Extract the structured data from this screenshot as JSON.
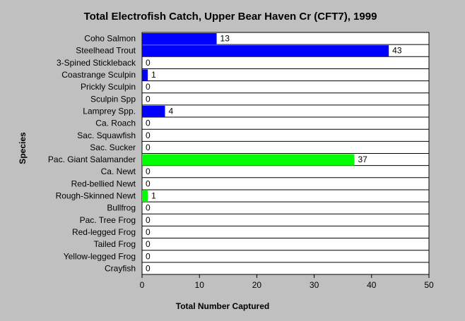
{
  "chart_data": {
    "type": "bar",
    "orientation": "horizontal",
    "title": "Total Electrofish Catch, Upper Bear Haven Cr (CFT7), 1999",
    "xlabel": "Total Number Captured",
    "ylabel": "Species",
    "xlim": [
      0,
      50
    ],
    "xticks": [
      0,
      10,
      20,
      30,
      40,
      50
    ],
    "grid": "horizontal lines between categories",
    "categories": [
      "Coho Salmon",
      "Steelhead Trout",
      "3-Spined Stickleback",
      "Coastrange Sculpin",
      "Prickly Sculpin",
      "Sculpin Spp",
      "Lamprey Spp.",
      "Ca. Roach",
      "Sac. Squawfish",
      "Sac. Sucker",
      "Pac. Giant Salamander",
      "Ca. Newt",
      "Red-bellied Newt",
      "Rough-Skinned Newt",
      "Bullfrog",
      "Pac. Tree Frog",
      "Red-legged Frog",
      "Tailed Frog",
      "Yellow-legged Frog",
      "Crayfish"
    ],
    "values": [
      13,
      43,
      0,
      1,
      0,
      0,
      4,
      0,
      0,
      0,
      37,
      0,
      0,
      1,
      0,
      0,
      0,
      0,
      0,
      0
    ],
    "bar_colors": [
      "#0000ff",
      "#0000ff",
      "#0000ff",
      "#0000ff",
      "#0000ff",
      "#0000ff",
      "#0000ff",
      "#0000ff",
      "#0000ff",
      "#0000ff",
      "#00ff00",
      "#00ff00",
      "#00ff00",
      "#00ff00",
      "#00ff00",
      "#00ff00",
      "#00ff00",
      "#00ff00",
      "#00ff00",
      "#0000ff"
    ],
    "background_color": "#c0c0c0",
    "plot_background_color": "#ffffff"
  }
}
